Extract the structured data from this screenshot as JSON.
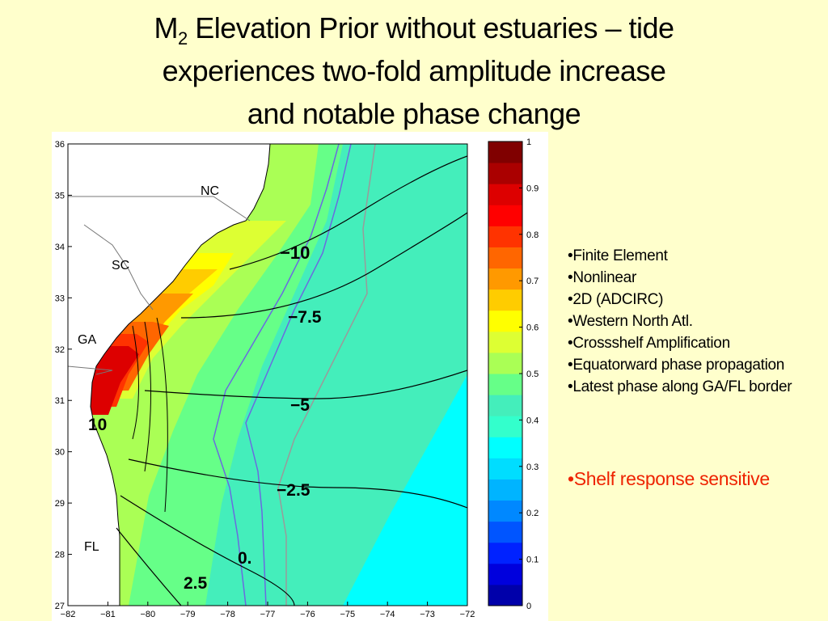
{
  "title": {
    "prefix": "M",
    "subscript": "2",
    "line1_rest": " Elevation Prior without estuaries – tide",
    "line2": "experiences two-fold amplitude increase",
    "line3": "and notable phase change"
  },
  "map": {
    "region_labels": [
      "NC",
      "SC",
      "GA",
      "FL"
    ],
    "contour_labels": [
      "−10",
      "−7.5",
      "−5",
      "−2.5",
      "0.",
      "2.5",
      "10"
    ],
    "y_ticks": [
      "36",
      "35",
      "34",
      "33",
      "32",
      "31",
      "30",
      "29",
      "28",
      "27"
    ],
    "x_ticks": [
      "−82",
      "−81",
      "−80",
      "−79",
      "−78",
      "−77",
      "−76",
      "−75",
      "−74",
      "−73",
      "−72"
    ]
  },
  "colorbar": {
    "ticks": [
      "1",
      "0.9",
      "0.8",
      "0.7",
      "0.6",
      "0.5",
      "0.4",
      "0.3",
      "0.2",
      "0.1",
      "0"
    ],
    "colors": [
      "#0000aa",
      "#0000dd",
      "#0022ff",
      "#0055ff",
      "#0088ff",
      "#00b4ff",
      "#00ddff",
      "#00ffff",
      "#33ffcc",
      "#44eebb",
      "#66ff88",
      "#aaff55",
      "#ddff33",
      "#ffff00",
      "#ffcc00",
      "#ff9900",
      "#ff6600",
      "#ff3300",
      "#ff0000",
      "#dd0000",
      "#aa0000",
      "#800000"
    ]
  },
  "bullets": [
    "•Finite Element",
    "•Nonlinear",
    "•2D (ADCIRC)",
    "•Western North Atl.",
    "•Crossshelf Amplification",
    "•Equatorward phase propagation",
    "•Latest phase along GA/FL border"
  ],
  "highlight": "•Shelf response sensitive",
  "colors": {
    "background": "#ffffcc",
    "highlight": "#ee2200"
  }
}
